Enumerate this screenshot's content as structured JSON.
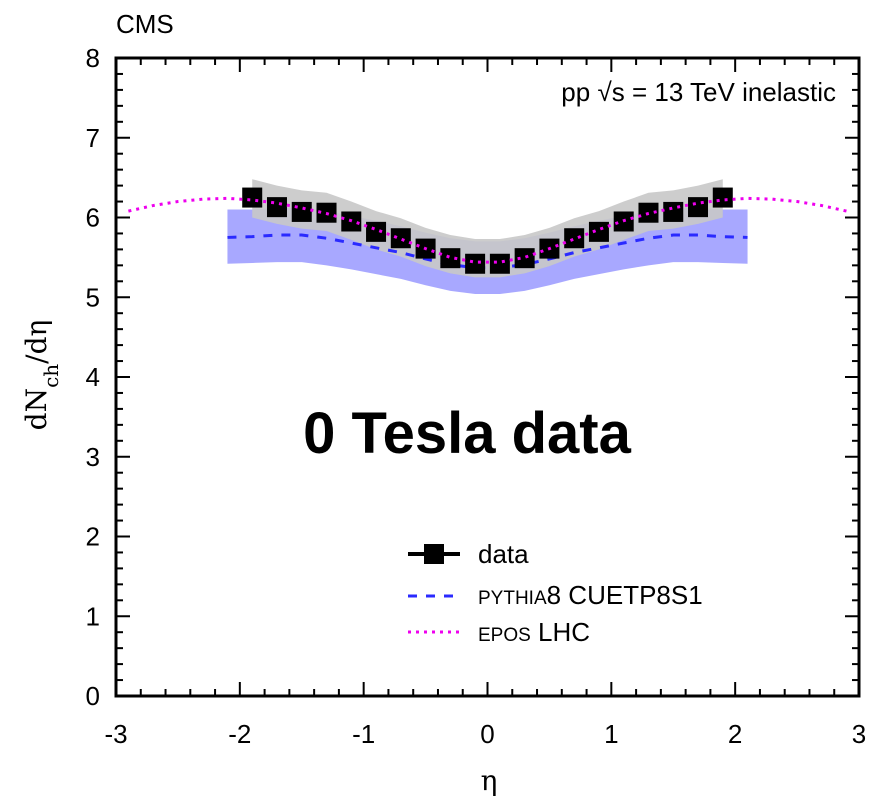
{
  "chart_data": {
    "type": "scatter",
    "experiment_label": "CMS",
    "energy_label": {
      "prefix": "pp ",
      "sqrt": "√s",
      "suffix": " = 13 TeV inelastic"
    },
    "overlay_text": "0 Tesla data",
    "xlabel": "η",
    "ylabel": {
      "main": "dN",
      "sub": "ch",
      "rest": "/dη"
    },
    "xlim": [
      -3,
      3
    ],
    "ylim": [
      0,
      8
    ],
    "x_ticks": [
      "-3",
      "-2",
      "-1",
      "0",
      "1",
      "2",
      "3"
    ],
    "y_ticks": [
      "0",
      "1",
      "2",
      "3",
      "4",
      "5",
      "6",
      "7",
      "8"
    ],
    "legend": [
      {
        "name": "data",
        "style": "marker-line"
      },
      {
        "name_sc": "PYTHIA",
        "name_rest": "8 CUETP8S1",
        "style": "dashed"
      },
      {
        "name_sc": "EPOS",
        "name_rest": " LHC",
        "style": "dotted"
      }
    ],
    "series": [
      {
        "name": "data",
        "color": "#000000",
        "x": [
          -1.9,
          -1.7,
          -1.5,
          -1.3,
          -1.1,
          -0.9,
          -0.7,
          -0.5,
          -0.3,
          -0.1,
          0.1,
          0.3,
          0.5,
          0.7,
          0.9,
          1.1,
          1.3,
          1.5,
          1.7,
          1.9
        ],
        "y": [
          6.25,
          6.13,
          6.07,
          6.06,
          5.95,
          5.82,
          5.74,
          5.61,
          5.49,
          5.42,
          5.42,
          5.49,
          5.61,
          5.74,
          5.82,
          5.95,
          6.06,
          6.07,
          6.13,
          6.25
        ],
        "band_lo": [
          6.0,
          5.92,
          5.86,
          5.83,
          5.72,
          5.6,
          5.51,
          5.39,
          5.3,
          5.25,
          5.25,
          5.3,
          5.39,
          5.51,
          5.6,
          5.72,
          5.83,
          5.86,
          5.92,
          6.0
        ],
        "band_hi": [
          6.48,
          6.4,
          6.34,
          6.31,
          6.2,
          6.08,
          5.99,
          5.87,
          5.78,
          5.73,
          5.73,
          5.78,
          5.87,
          5.99,
          6.08,
          6.2,
          6.31,
          6.34,
          6.4,
          6.48
        ],
        "band_color": "#c8c8c8"
      },
      {
        "name": "PYTHIA8 CUETP8S1",
        "color": "#2a2aff",
        "x": [
          -2.1,
          -1.9,
          -1.7,
          -1.5,
          -1.3,
          -1.1,
          -0.9,
          -0.7,
          -0.5,
          -0.3,
          -0.1,
          0.1,
          0.3,
          0.5,
          0.7,
          0.9,
          1.1,
          1.3,
          1.5,
          1.7,
          1.9,
          2.1
        ],
        "y": [
          5.75,
          5.76,
          5.78,
          5.78,
          5.74,
          5.68,
          5.62,
          5.56,
          5.48,
          5.41,
          5.37,
          5.37,
          5.41,
          5.48,
          5.56,
          5.62,
          5.68,
          5.74,
          5.78,
          5.78,
          5.76,
          5.75
        ],
        "band_lo": [
          5.42,
          5.43,
          5.44,
          5.44,
          5.4,
          5.35,
          5.29,
          5.23,
          5.15,
          5.08,
          5.04,
          5.04,
          5.08,
          5.15,
          5.23,
          5.29,
          5.35,
          5.4,
          5.44,
          5.44,
          5.43,
          5.42
        ],
        "band_hi": [
          6.1,
          6.1,
          6.12,
          6.12,
          6.08,
          6.02,
          5.96,
          5.89,
          5.81,
          5.74,
          5.7,
          5.7,
          5.74,
          5.81,
          5.89,
          5.96,
          6.02,
          6.08,
          6.12,
          6.12,
          6.1,
          6.1
        ],
        "band_color": "#9999ff"
      },
      {
        "name": "EPOS LHC",
        "color": "#ee00ee",
        "x": [
          -2.9,
          -2.7,
          -2.5,
          -2.3,
          -2.1,
          -1.9,
          -1.7,
          -1.5,
          -1.3,
          -1.1,
          -0.9,
          -0.7,
          -0.5,
          -0.3,
          -0.1,
          0.1,
          0.3,
          0.5,
          0.7,
          0.9,
          1.1,
          1.3,
          1.5,
          1.7,
          1.9,
          2.1,
          2.3,
          2.5,
          2.7,
          2.9
        ],
        "y": [
          6.08,
          6.15,
          6.2,
          6.23,
          6.24,
          6.22,
          6.18,
          6.12,
          6.05,
          5.96,
          5.85,
          5.73,
          5.61,
          5.5,
          5.44,
          5.44,
          5.5,
          5.61,
          5.73,
          5.85,
          5.96,
          6.05,
          6.12,
          6.18,
          6.22,
          6.24,
          6.23,
          6.2,
          6.15,
          6.08
        ]
      }
    ]
  }
}
